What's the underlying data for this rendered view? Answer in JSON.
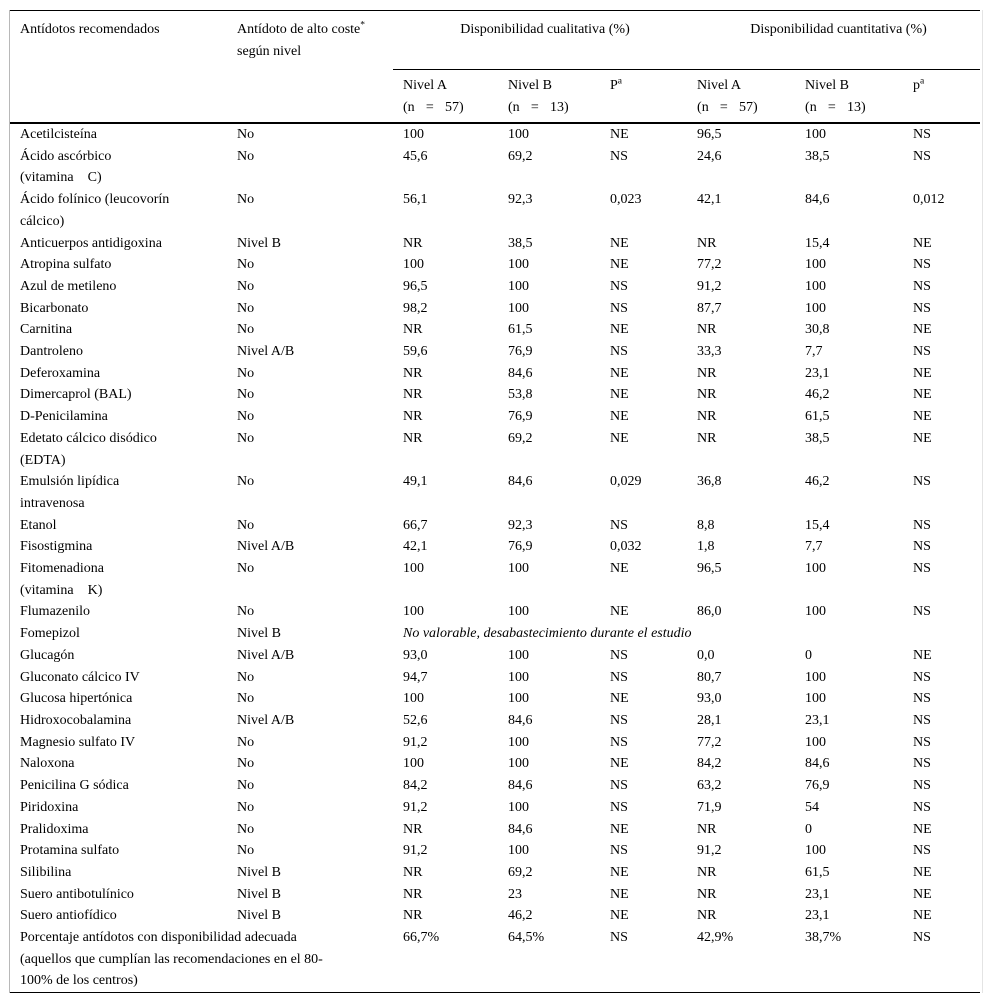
{
  "header": {
    "col1": "Antídotos recomendados",
    "col2_line1": "Antídoto de alto coste",
    "col2_sup": "*",
    "col2_line2": "según nivel",
    "qual_title": "Disponibilidad cualitativa (%)",
    "quant_title": "Disponibilidad cuantitativa (%)",
    "sub": {
      "nivel_a_line1": "Nivel A",
      "nivel_a_line2": "(n = 57)",
      "nivel_b_line1": "Nivel B",
      "nivel_b_line2": "(n = 13)",
      "p_qual_base": "P",
      "p_quant_base": "p",
      "p_sup": "a"
    }
  },
  "table": {
    "columns": [
      "Antídotos recomendados",
      "Antídoto de alto coste según nivel",
      "Disponibilidad cualitativa (%) Nivel A (n = 57)",
      "Disponibilidad cualitativa (%) Nivel B (n = 13)",
      "Disponibilidad cualitativa (%) P",
      "Disponibilidad cuantitativa (%) Nivel A (n = 57)",
      "Disponibilidad cuantitativa (%) Nivel B (n = 13)",
      "Disponibilidad cuantitativa (%) p"
    ],
    "rows": [
      {
        "name": "Acetilcisteína",
        "level": "No",
        "values": [
          "100",
          "100",
          "NE",
          "96,5",
          "100",
          "NS"
        ]
      },
      {
        "name": "Ácido ascórbico\n(vitamina    C)",
        "level": "No",
        "values": [
          "45,6",
          "69,2",
          "NS",
          "24,6",
          "38,5",
          "NS"
        ]
      },
      {
        "name": "Ácido folínico (leucovorín\ncálcico)",
        "level": "No",
        "values": [
          "56,1",
          "92,3",
          "0,023",
          "42,1",
          "84,6",
          "0,012"
        ]
      },
      {
        "name": "Anticuerpos antidigoxina",
        "level": "Nivel B",
        "values": [
          "NR",
          "38,5",
          "NE",
          "NR",
          "15,4",
          "NE"
        ]
      },
      {
        "name": "Atropina sulfato",
        "level": "No",
        "values": [
          "100",
          "100",
          "NE",
          "77,2",
          "100",
          "NS"
        ]
      },
      {
        "name": "Azul de metileno",
        "level": "No",
        "values": [
          "96,5",
          "100",
          "NS",
          "91,2",
          "100",
          "NS"
        ]
      },
      {
        "name": "Bicarbonato",
        "level": "No",
        "values": [
          "98,2",
          "100",
          "NS",
          "87,7",
          "100",
          "NS"
        ]
      },
      {
        "name": "Carnitina",
        "level": "No",
        "values": [
          "NR",
          "61,5",
          "NE",
          "NR",
          "30,8",
          "NE"
        ]
      },
      {
        "name": "Dantroleno",
        "level": "Nivel A/B",
        "values": [
          "59,6",
          "76,9",
          "NS",
          "33,3",
          "7,7",
          "NS"
        ]
      },
      {
        "name": "Deferoxamina",
        "level": "No",
        "values": [
          "NR",
          "84,6",
          "NE",
          "NR",
          "23,1",
          "NE"
        ]
      },
      {
        "name": "Dimercaprol (BAL)",
        "level": "No",
        "values": [
          "NR",
          "53,8",
          "NE",
          "NR",
          "46,2",
          "NE"
        ]
      },
      {
        "name": "D-Penicilamina",
        "level": "No",
        "values": [
          "NR",
          "76,9",
          "NE",
          "NR",
          "61,5",
          "NE"
        ]
      },
      {
        "name": "Edetato cálcico disódico\n(EDTA)",
        "level": "No",
        "values": [
          "NR",
          "69,2",
          "NE",
          "NR",
          "38,5",
          "NE"
        ]
      },
      {
        "name": "Emulsión lipídica\nintravenosa",
        "level": "No",
        "values": [
          "49,1",
          "84,6",
          "0,029",
          "36,8",
          "46,2",
          "NS"
        ]
      },
      {
        "name": "Etanol",
        "level": "No",
        "values": [
          "66,7",
          "92,3",
          "NS",
          "8,8",
          "15,4",
          "NS"
        ]
      },
      {
        "name": "Fisostigmina",
        "level": "Nivel A/B",
        "values": [
          "42,1",
          "76,9",
          "0,032",
          "1,8",
          "7,7",
          "NS"
        ]
      },
      {
        "name": "Fitomenadiona\n(vitamina    K)",
        "level": "No",
        "values": [
          "100",
          "100",
          "NE",
          "96,5",
          "100",
          "NS"
        ]
      },
      {
        "name": "Flumazenilo",
        "level": "No",
        "values": [
          "100",
          "100",
          "NE",
          "86,0",
          "100",
          "NS"
        ]
      },
      {
        "name": "Fomepizol",
        "level": "Nivel B",
        "note": "No valorable, desabastecimiento durante el estudio"
      },
      {
        "name": "Glucagón",
        "level": "Nivel A/B",
        "values": [
          "93,0",
          "100",
          "NS",
          "0,0",
          "0",
          "NE"
        ]
      },
      {
        "name": "Gluconato cálcico IV",
        "level": "No",
        "values": [
          "94,7",
          "100",
          "NS",
          "80,7",
          "100",
          "NS"
        ]
      },
      {
        "name": "Glucosa hipertónica",
        "level": "No",
        "values": [
          "100",
          "100",
          "NE",
          "93,0",
          "100",
          "NS"
        ]
      },
      {
        "name": "Hidroxocobalamina",
        "level": "Nivel A/B",
        "values": [
          "52,6",
          "84,6",
          "NS",
          "28,1",
          "23,1",
          "NS"
        ]
      },
      {
        "name": "Magnesio sulfato IV",
        "level": "No",
        "values": [
          "91,2",
          "100",
          "NS",
          "77,2",
          "100",
          "NS"
        ]
      },
      {
        "name": "Naloxona",
        "level": "No",
        "values": [
          "100",
          "100",
          "NE",
          "84,2",
          "84,6",
          "NS"
        ]
      },
      {
        "name": "Penicilina G sódica",
        "level": "No",
        "values": [
          "84,2",
          "84,6",
          "NS",
          "63,2",
          "76,9",
          "NS"
        ]
      },
      {
        "name": "Piridoxina",
        "level": "No",
        "values": [
          "91,2",
          "100",
          "NS",
          "71,9",
          "54",
          "NS"
        ]
      },
      {
        "name": "Pralidoxima",
        "level": "No",
        "values": [
          "NR",
          "84,6",
          "NE",
          "NR",
          "0",
          "NE"
        ]
      },
      {
        "name": "Protamina sulfato",
        "level": "No",
        "values": [
          "91,2",
          "100",
          "NS",
          "91,2",
          "100",
          "NS"
        ]
      },
      {
        "name": "Silibilina",
        "level": "Nivel B",
        "values": [
          "NR",
          "69,2",
          "NE",
          "NR",
          "61,5",
          "NE"
        ]
      },
      {
        "name": "Suero antibotulínico",
        "level": "Nivel B",
        "values": [
          "NR",
          "23",
          "NE",
          "NR",
          "23,1",
          "NE"
        ]
      },
      {
        "name": "Suero antiofídico",
        "level": "Nivel B",
        "values": [
          "NR",
          "46,2",
          "NE",
          "NR",
          "23,1",
          "NE"
        ]
      },
      {
        "name": "Porcentaje antídotos con disponibilidad adecuada\n(aquellos que cumplían las recomendaciones en el 80-\n100% de los centros)",
        "level": null,
        "span2": true,
        "wide": true,
        "values": [
          "66,7%",
          "64,5%",
          "NS",
          "42,9%",
          "38,7%",
          "NS"
        ]
      }
    ]
  }
}
